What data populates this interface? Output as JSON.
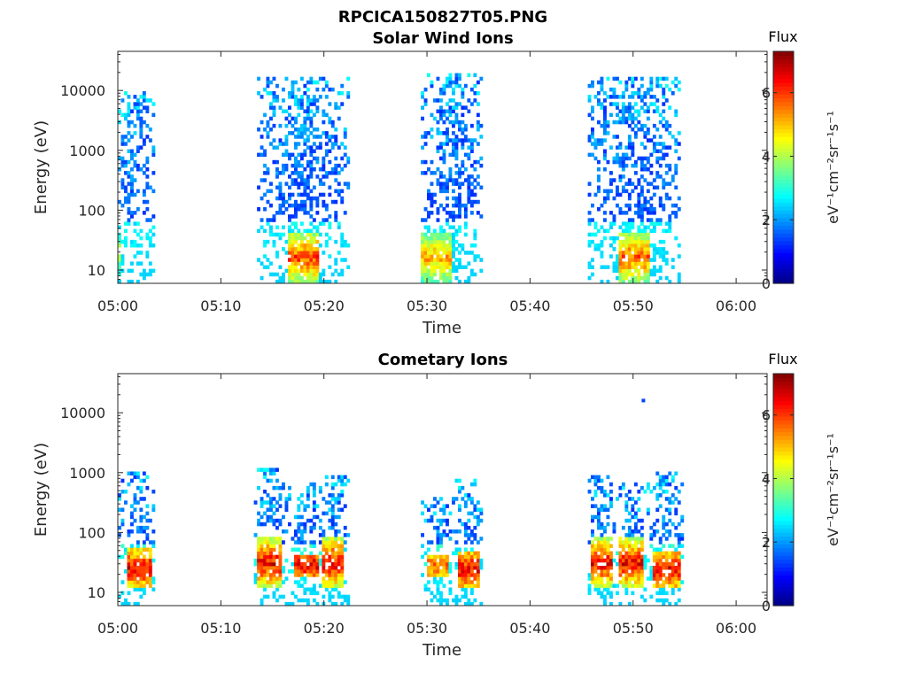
{
  "figure_title": "RPCICA150827T05.PNG",
  "chart_data": [
    {
      "type": "heatmap",
      "title": "Solar Wind Ions",
      "xlabel": "Time",
      "ylabel": "Energy (eV)",
      "x_ticks": [
        "05:00",
        "05:10",
        "05:20",
        "05:30",
        "05:40",
        "05:50",
        "06:00"
      ],
      "y_ticks": [
        "10",
        "100",
        "1000",
        "10000"
      ],
      "y_scale": "log",
      "x_range_minutes": [
        0,
        63
      ],
      "y_range_eV": [
        6,
        45000
      ],
      "colorbar": {
        "title": "Flux",
        "label": "eV⁻¹cm⁻²sr⁻¹s⁻¹",
        "ticks": [
          "0",
          "2",
          "4",
          "6"
        ],
        "range": [
          0,
          7.3
        ],
        "colormap": "jet"
      },
      "bursts": [
        {
          "t0": 0.0,
          "t1": 3.5,
          "hi_eV": 10000,
          "core_t": [
            0.0,
            0.3
          ],
          "core_eV": [
            8,
            45
          ],
          "peak": 4.5,
          "density": 0.42
        },
        {
          "t0": 13.5,
          "t1": 22.5,
          "hi_eV": 18000,
          "core_t": [
            16.5,
            19.5
          ],
          "core_eV": [
            6,
            45
          ],
          "peak": 6.6,
          "density": 0.5
        },
        {
          "t0": 29.5,
          "t1": 35.5,
          "hi_eV": 20000,
          "core_t": [
            29.5,
            32.5
          ],
          "core_eV": [
            6,
            45
          ],
          "peak": 5.8,
          "density": 0.5
        },
        {
          "t0": 45.5,
          "t1": 54.5,
          "hi_eV": 18000,
          "core_t": [
            48.5,
            51.5
          ],
          "core_eV": [
            6,
            45
          ],
          "peak": 6.4,
          "density": 0.5
        }
      ]
    },
    {
      "type": "heatmap",
      "title": "Cometary Ions",
      "xlabel": "Time",
      "ylabel": "Energy (eV)",
      "x_ticks": [
        "05:00",
        "05:10",
        "05:20",
        "05:30",
        "05:40",
        "05:50",
        "06:00"
      ],
      "y_ticks": [
        "10",
        "100",
        "1000",
        "10000"
      ],
      "y_scale": "log",
      "x_range_minutes": [
        0,
        63
      ],
      "y_range_eV": [
        6,
        45000
      ],
      "colorbar": {
        "title": "Flux",
        "label": "eV⁻¹cm⁻²sr⁻¹s⁻¹",
        "ticks": [
          "0",
          "2",
          "4",
          "6"
        ],
        "range": [
          0,
          7.3
        ],
        "colormap": "jet"
      },
      "bursts": [
        {
          "t0": 0.0,
          "t1": 3.5,
          "hi_eV": 1000,
          "core_t": [
            1.0,
            3.2
          ],
          "core_eV": [
            12,
            55
          ],
          "peak": 7.2,
          "density": 0.4
        },
        {
          "t0": 13.3,
          "t1": 16.5,
          "hi_eV": 1200,
          "core_t": [
            13.6,
            16.0
          ],
          "core_eV": [
            12,
            80
          ],
          "peak": 7.2,
          "density": 0.45
        },
        {
          "t0": 16.5,
          "t1": 19.7,
          "hi_eV": 700,
          "core_t": [
            17.2,
            19.5
          ],
          "core_eV": [
            18,
            45
          ],
          "peak": 7.2,
          "density": 0.45
        },
        {
          "t0": 19.7,
          "t1": 22.5,
          "hi_eV": 900,
          "core_t": [
            19.8,
            22.0
          ],
          "core_eV": [
            12,
            80
          ],
          "peak": 7.2,
          "density": 0.45
        },
        {
          "t0": 29.5,
          "t1": 32.5,
          "hi_eV": 400,
          "core_t": [
            30.0,
            32.0
          ],
          "core_eV": [
            18,
            45
          ],
          "peak": 6.3,
          "density": 0.4
        },
        {
          "t0": 32.5,
          "t1": 35.5,
          "hi_eV": 800,
          "core_t": [
            33.0,
            35.0
          ],
          "core_eV": [
            12,
            50
          ],
          "peak": 7.2,
          "density": 0.45
        },
        {
          "t0": 45.5,
          "t1": 48.3,
          "hi_eV": 900,
          "core_t": [
            45.8,
            48.0
          ],
          "core_eV": [
            12,
            80
          ],
          "peak": 7.2,
          "density": 0.45
        },
        {
          "t0": 48.3,
          "t1": 51.5,
          "hi_eV": 700,
          "core_t": [
            48.5,
            51.0
          ],
          "core_eV": [
            12,
            80
          ],
          "peak": 7.2,
          "density": 0.45
        },
        {
          "t0": 51.5,
          "t1": 54.8,
          "hi_eV": 1000,
          "core_t": [
            52.0,
            54.5
          ],
          "core_eV": [
            12,
            50
          ],
          "peak": 7.2,
          "density": 0.45
        }
      ],
      "isolated_points": [
        {
          "t": 51.0,
          "eV": 16000,
          "value": 1.4
        }
      ]
    }
  ]
}
